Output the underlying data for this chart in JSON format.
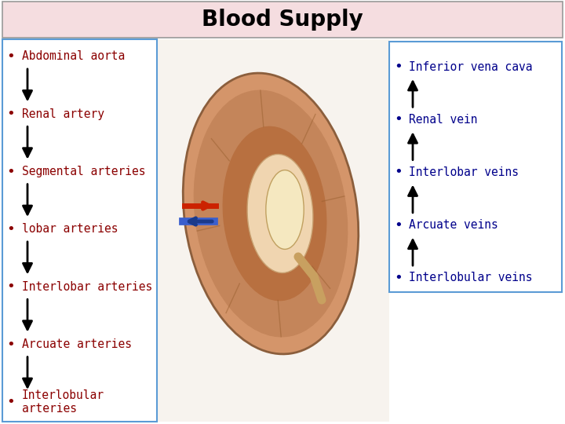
{
  "title": "Blood Supply",
  "title_bg": "#f5dde0",
  "title_color": "#000000",
  "title_fontsize": 20,
  "left_box_border": "#5b9bd5",
  "right_box_border": "#5b9bd5",
  "left_items": [
    "Abdominal aorta",
    "Renal artery",
    "Segmental arteries",
    "lobar arteries",
    "Interlobar arteries",
    "Arcuate arteries",
    "Interlobular\narteries"
  ],
  "right_items": [
    "Inferior vena cava",
    "Renal vein",
    "Interlobar veins",
    "Arcuate veins",
    "Interlobular veins"
  ],
  "left_text_color": "#8b0000",
  "right_text_color": "#00008b",
  "arrow_color": "#000000",
  "item_fontsize": 10.5,
  "bg_color": "#ffffff",
  "fig_width": 7.2,
  "fig_height": 5.4,
  "dpi": 100
}
